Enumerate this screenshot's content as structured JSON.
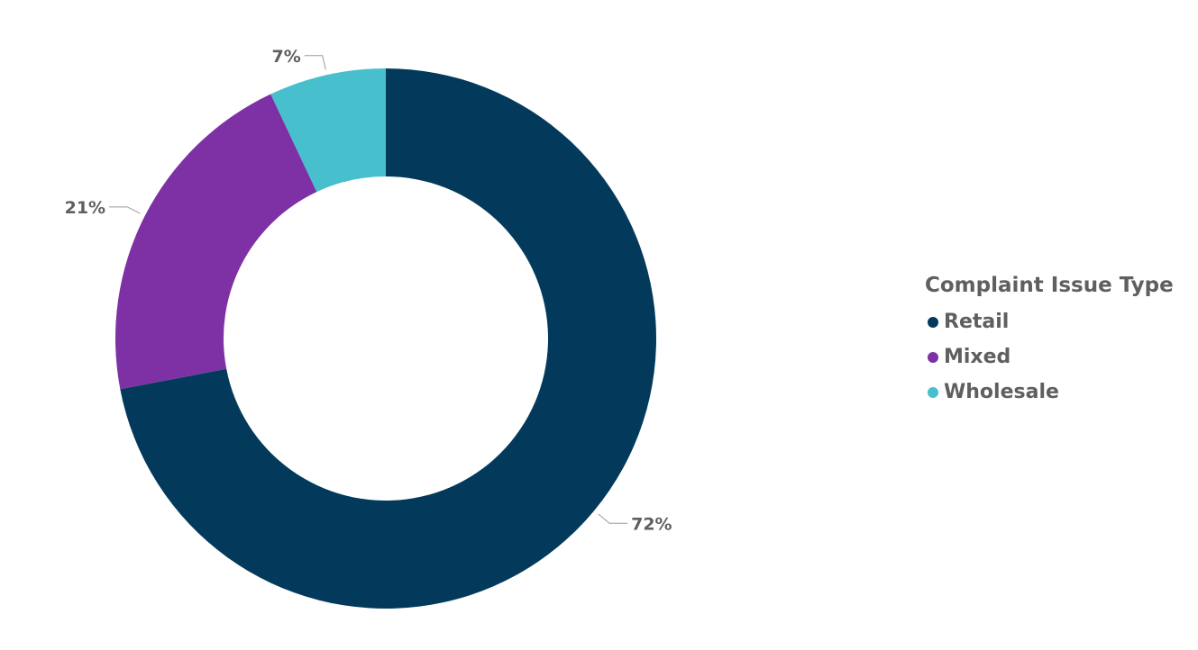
{
  "chart_data": {
    "type": "pie",
    "subtype": "donut",
    "legend_title": "Complaint Issue Type",
    "legend_position": "right",
    "categories": [
      "Retail",
      "Mixed",
      "Wholesale"
    ],
    "values": [
      72,
      21,
      7
    ],
    "labels": [
      "72%",
      "21%",
      "7%"
    ],
    "colors": [
      "#033a5b",
      "#7e31a4",
      "#47bfcc"
    ]
  }
}
